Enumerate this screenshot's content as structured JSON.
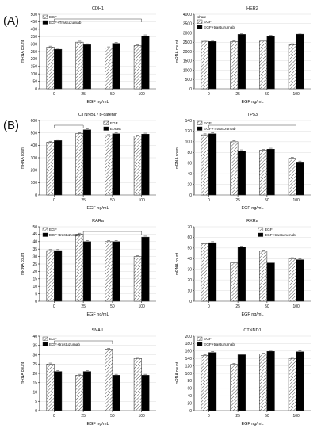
{
  "panel_labels": {
    "a": "(A)",
    "b": "(B)"
  },
  "colors": {
    "egf": "#ffffff",
    "treated": "#000000",
    "hatch": "#555555"
  },
  "chart_data": [
    {
      "type": "bar",
      "title": "CDH1",
      "legend": [
        "EGF",
        "EGF+Trastuzumab"
      ],
      "legend_placement": "top-left",
      "xlabel": "EGF ng/mL",
      "ylabel": "mRNA count",
      "ylim": [
        0,
        500
      ],
      "yticks": [
        0,
        50,
        100,
        150,
        200,
        250,
        300,
        350,
        400,
        450,
        500
      ],
      "categories": [
        "0",
        "25",
        "50",
        "100"
      ],
      "series": [
        {
          "name": "EGF",
          "values": [
            280,
            313,
            275,
            290
          ]
        },
        {
          "name": "EGF+Trastuzumab",
          "values": [
            265,
            296,
            305,
            355
          ]
        }
      ],
      "bracket": {
        "from": 0,
        "to": 3
      }
    },
    {
      "type": "bar",
      "title": "HER2",
      "legend_title": "share",
      "legend": [
        "EGF",
        "EGF+trastuzumab"
      ],
      "legend_placement": "top-left",
      "xlabel": "EGF ng/mL",
      "ylabel": "mRNA count",
      "ylim": [
        0,
        4000
      ],
      "yticks": [
        0,
        500,
        1000,
        1500,
        2000,
        2500,
        3000,
        3500,
        4000
      ],
      "categories": [
        "0",
        "25",
        "50",
        "100"
      ],
      "series": [
        {
          "name": "EGF",
          "values": [
            2550,
            2530,
            2560,
            2370
          ]
        },
        {
          "name": "EGF+trastuzumab",
          "values": [
            2540,
            2920,
            2810,
            2930
          ]
        }
      ]
    },
    {
      "type": "bar",
      "title": "CTNNB1 / b-catenin",
      "legend": [
        "EGF",
        "Ebrast"
      ],
      "legend_placement": "top-right",
      "xlabel": "EGF ng/mL",
      "ylabel": "mRNA count",
      "ylim": [
        0,
        600
      ],
      "yticks": [
        0,
        100,
        200,
        300,
        400,
        500,
        600
      ],
      "categories": [
        "0",
        "25",
        "50",
        "100"
      ],
      "series": [
        {
          "name": "EGF",
          "values": [
            425,
            495,
            478,
            475
          ]
        },
        {
          "name": "Ebrast",
          "values": [
            438,
            525,
            493,
            490
          ]
        }
      ],
      "bracket": {
        "from": 0,
        "to": 1
      }
    },
    {
      "type": "bar",
      "title": "TP53",
      "legend": [
        "EGF",
        "EGF+Trastuzumab"
      ],
      "legend_placement": "top-left",
      "xlabel": "EGF ng/mL",
      "ylabel": "mRNA count",
      "ylim": [
        0,
        140
      ],
      "yticks": [
        0,
        20,
        40,
        60,
        80,
        100,
        120,
        140
      ],
      "categories": [
        "0",
        "25",
        "50",
        "100"
      ],
      "series": [
        {
          "name": "EGF",
          "values": [
            113,
            100,
            84,
            69
          ]
        },
        {
          "name": "EGF+Trastuzumab",
          "values": [
            115,
            83,
            86,
            62
          ]
        }
      ],
      "bracket": {
        "from": 0,
        "to": 3
      }
    },
    {
      "type": "bar",
      "title": "RARa",
      "legend": [
        "EGF",
        "EGF+trastuzumab"
      ],
      "legend_placement": "top-left",
      "xlabel": "EGF ng/mL",
      "ylabel": "mRNA count",
      "ylim": [
        0,
        50
      ],
      "yticks": [
        0,
        5,
        10,
        15,
        20,
        25,
        30,
        35,
        40,
        45,
        50
      ],
      "categories": [
        "0",
        "25",
        "50",
        "100"
      ],
      "series": [
        {
          "name": "EGF",
          "values": [
            34,
            45,
            40,
            30
          ]
        },
        {
          "name": "EGF+trastuzumab",
          "values": [
            34,
            40,
            40,
            43
          ]
        }
      ],
      "bracket": {
        "from": 1,
        "to": 3
      }
    },
    {
      "type": "bar",
      "title": "RXRa",
      "legend": [
        "EGF",
        "EGF+trastuzumab"
      ],
      "legend_placement": "top-right",
      "xlabel": "EGF ng/mL",
      "ylabel": "mRNA count",
      "ylim": [
        0,
        70
      ],
      "yticks": [
        0,
        10,
        20,
        30,
        40,
        50,
        60,
        70
      ],
      "categories": [
        "0",
        "25",
        "50",
        "100"
      ],
      "series": [
        {
          "name": "EGF",
          "values": [
            54,
            36,
            47,
            40
          ]
        },
        {
          "name": "EGF+trastuzumab",
          "values": [
            55,
            51,
            36,
            39
          ]
        }
      ]
    },
    {
      "type": "bar",
      "title": "SNAIL",
      "legend": [
        "EGF",
        "EGF+trastuzumab"
      ],
      "legend_placement": "top-left",
      "xlabel": "EGF ng/mL",
      "ylabel": "mRNA count",
      "ylim": [
        0,
        40
      ],
      "yticks": [
        0,
        5,
        10,
        15,
        20,
        25,
        30,
        35,
        40
      ],
      "categories": [
        "0",
        "25",
        "50",
        "100"
      ],
      "series": [
        {
          "name": "EGF",
          "values": [
            25,
            19,
            33,
            28
          ]
        },
        {
          "name": "EGF+trastuzumab",
          "values": [
            21,
            21,
            19,
            19
          ]
        }
      ],
      "bracket": {
        "from": 0,
        "to": 2
      }
    },
    {
      "type": "bar",
      "title": "CTNND1",
      "legend": [
        "EGF",
        "EGF+trastuzumab"
      ],
      "legend_placement": "top-left",
      "xlabel": "EGF ng/mL",
      "ylabel": "mRNA count",
      "ylim": [
        0,
        200
      ],
      "yticks": [
        0,
        20,
        40,
        60,
        80,
        100,
        120,
        140,
        160,
        180,
        200
      ],
      "categories": [
        "0",
        "25",
        "50",
        "100"
      ],
      "series": [
        {
          "name": "EGF",
          "values": [
            148,
            124,
            152,
            140
          ]
        },
        {
          "name": "EGF+trastuzumab",
          "values": [
            156,
            150,
            159,
            158
          ]
        }
      ]
    }
  ]
}
